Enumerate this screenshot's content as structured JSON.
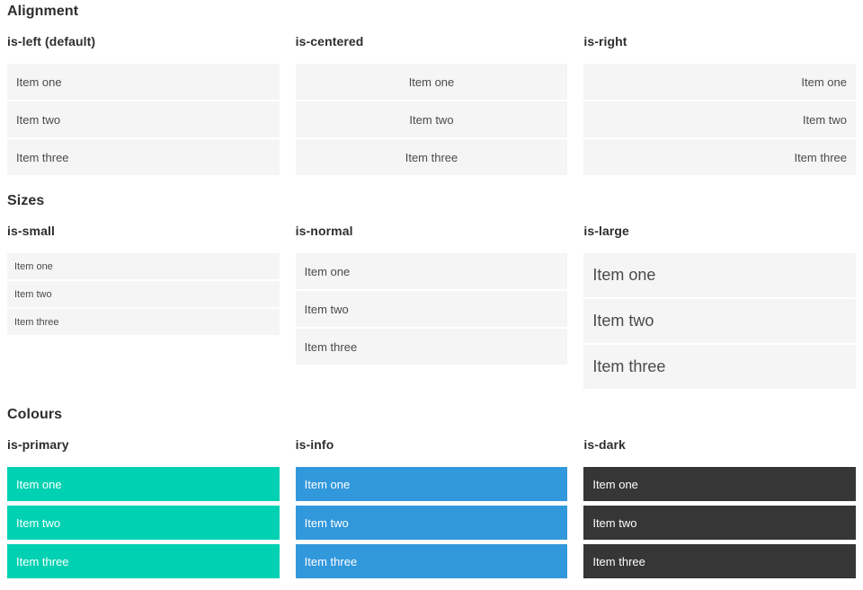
{
  "colors": {
    "page_background": "#ffffff",
    "heading_text": "#2e2e2e",
    "item_background": "#f5f5f5",
    "item_text": "#4a4a4a",
    "colored_item_text": "#ffffff",
    "primary": "#00d1b2",
    "info": "#3298dc",
    "dark": "#363636"
  },
  "sections": [
    {
      "title": "Alignment",
      "columns": [
        {
          "label": "is-left (default)",
          "items": [
            "Item one",
            "Item two",
            "Item three"
          ]
        },
        {
          "label": "is-centered",
          "items": [
            "Item one",
            "Item two",
            "Item three"
          ]
        },
        {
          "label": "is-right",
          "items": [
            "Item one",
            "Item two",
            "Item three"
          ]
        }
      ]
    },
    {
      "title": "Sizes",
      "columns": [
        {
          "label": "is-small",
          "items": [
            "Item one",
            "Item two",
            "Item three"
          ]
        },
        {
          "label": "is-normal",
          "items": [
            "Item one",
            "Item two",
            "Item three"
          ]
        },
        {
          "label": "is-large",
          "items": [
            "Item one",
            "Item two",
            "Item three"
          ]
        }
      ]
    },
    {
      "title": "Colours",
      "columns": [
        {
          "label": "is-primary",
          "items": [
            "Item one",
            "Item two",
            "Item three"
          ]
        },
        {
          "label": "is-info",
          "items": [
            "Item one",
            "Item two",
            "Item three"
          ]
        },
        {
          "label": "is-dark",
          "items": [
            "Item one",
            "Item two",
            "Item three"
          ]
        }
      ]
    }
  ]
}
